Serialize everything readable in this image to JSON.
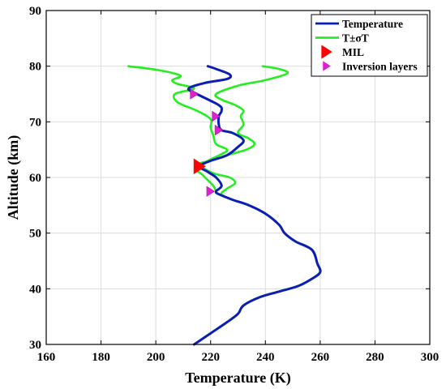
{
  "chart_data": {
    "type": "line",
    "xlabel": "Temperature (K)",
    "ylabel": "Altitude (km)",
    "xlim": [
      160,
      300
    ],
    "ylim": [
      30,
      90
    ],
    "xticks": [
      160,
      180,
      200,
      220,
      240,
      260,
      280,
      300
    ],
    "yticks": [
      30,
      40,
      50,
      60,
      70,
      80,
      90
    ],
    "grid": true,
    "legend_position": "top-right",
    "colors": {
      "temperature": "#0a1eb4",
      "sigma": "#22ee22",
      "mil": "#ff0000",
      "inversion": "#e020d0"
    },
    "series": [
      {
        "name": "Temperature",
        "style": "line",
        "color": "#0a1eb4",
        "points": [
          [
            214,
            30
          ],
          [
            220,
            32
          ],
          [
            226,
            34
          ],
          [
            230,
            35.5
          ],
          [
            232,
            37
          ],
          [
            238,
            38.5
          ],
          [
            245,
            39.5
          ],
          [
            252,
            40.5
          ],
          [
            257,
            41.8
          ],
          [
            260,
            43
          ],
          [
            259,
            44.5
          ],
          [
            257,
            47
          ],
          [
            251,
            48.5
          ],
          [
            247,
            50
          ],
          [
            245,
            51.5
          ],
          [
            240,
            53.5
          ],
          [
            234,
            55
          ],
          [
            228,
            56
          ],
          [
            223,
            57
          ],
          [
            222,
            57.5
          ],
          [
            224,
            58.5
          ],
          [
            222,
            60
          ],
          [
            219,
            61
          ],
          [
            216,
            62
          ],
          [
            220,
            63
          ],
          [
            226,
            64
          ],
          [
            230,
            65.5
          ],
          [
            232,
            66.7
          ],
          [
            228,
            68
          ],
          [
            224,
            68.5
          ],
          [
            223,
            69.5
          ],
          [
            223,
            71
          ],
          [
            224,
            72
          ],
          [
            223,
            73
          ],
          [
            215,
            75
          ],
          [
            212,
            76
          ],
          [
            218,
            77
          ],
          [
            226,
            77.7
          ],
          [
            227,
            78.5
          ],
          [
            222,
            79.5
          ],
          [
            219,
            80
          ]
        ]
      },
      {
        "name": "T±σT",
        "style": "line",
        "color": "#22ee22",
        "points": [
          [
            214,
            30
          ],
          [
            220,
            32
          ],
          [
            226,
            34
          ],
          [
            230,
            35.5
          ],
          [
            232,
            37
          ],
          [
            238,
            38.5
          ],
          [
            245,
            39.5
          ],
          [
            252,
            40.5
          ],
          [
            257,
            41.8
          ],
          [
            260,
            43
          ],
          [
            259,
            44.5
          ],
          [
            257,
            47
          ],
          [
            251,
            48.5
          ],
          [
            247,
            50
          ],
          [
            245,
            51.5
          ],
          [
            240,
            53.5
          ],
          [
            234,
            55
          ],
          [
            228,
            56
          ],
          [
            224,
            57
          ],
          [
            226,
            58
          ],
          [
            229,
            59
          ],
          [
            227,
            60
          ],
          [
            222,
            60.6
          ],
          [
            218,
            61.5
          ],
          [
            216,
            62.5
          ],
          [
            220,
            63
          ],
          [
            226,
            64
          ],
          [
            233,
            65
          ],
          [
            236,
            66
          ],
          [
            234,
            67
          ],
          [
            230,
            68
          ],
          [
            232,
            69.5
          ],
          [
            231,
            71
          ],
          [
            232,
            72
          ],
          [
            229,
            73
          ],
          [
            224,
            74
          ],
          [
            222,
            75
          ],
          [
            230,
            76.5
          ],
          [
            240,
            77.5
          ],
          [
            248,
            78.7
          ],
          [
            245,
            79.5
          ],
          [
            239,
            80
          ]
        ]
      },
      {
        "name": "T±σT (lower)",
        "style": "line",
        "color": "#22ee22",
        "points": [
          [
            222,
            57.5
          ],
          [
            221,
            58.5
          ],
          [
            219,
            59.5
          ],
          [
            217,
            60.5
          ],
          [
            215,
            61.5
          ],
          [
            219,
            63
          ],
          [
            224,
            64.2
          ],
          [
            226,
            65
          ],
          [
            222,
            66
          ],
          [
            221,
            67.5
          ],
          [
            220,
            69
          ],
          [
            220,
            70.5
          ],
          [
            215,
            72
          ],
          [
            208,
            73.5
          ],
          [
            207,
            75
          ],
          [
            214,
            76
          ],
          [
            208,
            76.8
          ],
          [
            206,
            77.5
          ],
          [
            209,
            78.3
          ],
          [
            201,
            79.3
          ],
          [
            190,
            80
          ]
        ]
      },
      {
        "name": "MIL",
        "style": "marker",
        "marker": "triangle-right",
        "color": "#ff0000",
        "points": [
          [
            216,
            62
          ]
        ]
      },
      {
        "name": "Inversion layers",
        "style": "marker",
        "marker": "triangle-right",
        "color": "#e020d0",
        "points": [
          [
            220,
            57.5
          ],
          [
            223,
            68.5
          ],
          [
            222,
            71
          ],
          [
            214,
            75
          ]
        ]
      }
    ],
    "legend": {
      "entries": [
        "Temperature",
        "T±σT",
        "MIL",
        "Inversion layers"
      ]
    }
  }
}
